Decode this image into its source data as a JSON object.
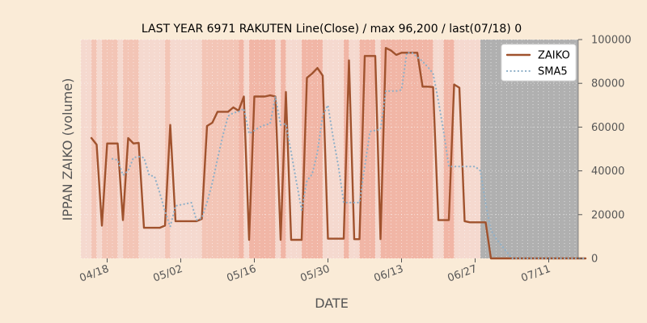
{
  "chart_data": {
    "type": "line",
    "title": "LAST YEAR 6971 RAKUTEN Line(Close) / max 96,200 / last(07/18) 0",
    "xlabel": "DATE",
    "ylabel": "IPPAN ZAIKO (volume)",
    "x_tick_labels": [
      "04/18",
      "05/02",
      "05/16",
      "05/30",
      "06/13",
      "06/27",
      "07/11"
    ],
    "y_tick_labels": [
      "0",
      "20000",
      "40000",
      "60000",
      "80000",
      "100000"
    ],
    "ylim": [
      0,
      100000
    ],
    "y_axis_side": "right",
    "legend_position": "top-right",
    "grid": true,
    "series": [
      {
        "name": "ZAIKO",
        "color": "#a0522d",
        "style": "solid",
        "points": [
          [
            "04/15",
            55000
          ],
          [
            "04/16",
            52000
          ],
          [
            "04/17",
            15000
          ],
          [
            "04/18",
            52500
          ],
          [
            "04/19",
            52500
          ],
          [
            "04/20",
            52500
          ],
          [
            "04/21",
            17500
          ],
          [
            "04/22",
            55000
          ],
          [
            "04/23",
            52500
          ],
          [
            "04/24",
            52800
          ],
          [
            "04/25",
            14000
          ],
          [
            "04/26",
            14000
          ],
          [
            "04/27",
            14000
          ],
          [
            "04/28",
            14000
          ],
          [
            "04/29",
            15000
          ],
          [
            "04/30",
            61000
          ],
          [
            "05/01",
            17000
          ],
          [
            "05/02",
            17000
          ],
          [
            "05/03",
            17000
          ],
          [
            "05/04",
            17000
          ],
          [
            "05/05",
            17000
          ],
          [
            "05/06",
            18000
          ],
          [
            "05/07",
            60500
          ],
          [
            "05/08",
            62000
          ],
          [
            "05/09",
            67000
          ],
          [
            "05/10",
            67000
          ],
          [
            "05/11",
            67000
          ],
          [
            "05/12",
            69000
          ],
          [
            "05/13",
            67500
          ],
          [
            "05/14",
            74000
          ],
          [
            "05/15",
            8500
          ],
          [
            "05/16",
            74000
          ],
          [
            "05/17",
            74000
          ],
          [
            "05/18",
            74000
          ],
          [
            "05/19",
            74500
          ],
          [
            "05/20",
            74000
          ],
          [
            "05/21",
            8500
          ],
          [
            "05/22",
            76000
          ],
          [
            "05/23",
            8500
          ],
          [
            "05/24",
            8500
          ],
          [
            "05/25",
            8500
          ],
          [
            "05/26",
            82500
          ],
          [
            "05/27",
            84500
          ],
          [
            "05/28",
            87000
          ],
          [
            "05/29",
            83500
          ],
          [
            "05/30",
            9000
          ],
          [
            "05/31",
            9000
          ],
          [
            "06/01",
            9000
          ],
          [
            "06/02",
            9000
          ],
          [
            "06/03",
            90500
          ],
          [
            "06/04",
            8800
          ],
          [
            "06/05",
            8800
          ],
          [
            "06/06",
            92500
          ],
          [
            "06/07",
            92500
          ],
          [
            "06/08",
            92500
          ],
          [
            "06/09",
            8800
          ],
          [
            "06/10",
            96200
          ],
          [
            "06/11",
            95000
          ],
          [
            "06/12",
            93000
          ],
          [
            "06/13",
            94000
          ],
          [
            "06/14",
            94000
          ],
          [
            "06/15",
            94000
          ],
          [
            "06/16",
            94000
          ],
          [
            "06/17",
            78500
          ],
          [
            "06/18",
            78500
          ],
          [
            "06/19",
            78300
          ],
          [
            "06/20",
            17500
          ],
          [
            "06/21",
            17500
          ],
          [
            "06/22",
            17500
          ],
          [
            "06/23",
            79500
          ],
          [
            "06/24",
            78000
          ],
          [
            "06/25",
            17000
          ],
          [
            "06/26",
            16500
          ],
          [
            "06/27",
            16500
          ],
          [
            "06/28",
            16500
          ],
          [
            "06/29",
            16500
          ],
          [
            "06/30",
            0
          ],
          [
            "07/01",
            0
          ],
          [
            "07/02",
            0
          ],
          [
            "07/03",
            0
          ],
          [
            "07/04",
            0
          ],
          [
            "07/05",
            0
          ],
          [
            "07/06",
            0
          ],
          [
            "07/07",
            0
          ],
          [
            "07/08",
            0
          ],
          [
            "07/09",
            0
          ],
          [
            "07/10",
            0
          ],
          [
            "07/11",
            0
          ],
          [
            "07/12",
            0
          ],
          [
            "07/13",
            0
          ],
          [
            "07/14",
            0
          ],
          [
            "07/15",
            0
          ],
          [
            "07/16",
            0
          ],
          [
            "07/17",
            0
          ],
          [
            "07/18",
            0
          ]
        ]
      },
      {
        "name": "SMA5",
        "color": "#8fb0c8",
        "style": "dotted",
        "points": [
          [
            "04/19",
            45500
          ],
          [
            "04/20",
            45000
          ],
          [
            "04/21",
            38000
          ],
          [
            "04/22",
            40000
          ],
          [
            "04/23",
            46000
          ],
          [
            "04/24",
            46500
          ],
          [
            "04/25",
            46000
          ],
          [
            "04/26",
            38000
          ],
          [
            "04/27",
            37500
          ],
          [
            "04/28",
            30000
          ],
          [
            "04/29",
            21500
          ],
          [
            "04/30",
            14500
          ],
          [
            "05/01",
            24000
          ],
          [
            "05/02",
            24500
          ],
          [
            "05/03",
            25000
          ],
          [
            "05/04",
            25500
          ],
          [
            "05/05",
            17500
          ],
          [
            "05/06",
            18500
          ],
          [
            "05/07",
            25500
          ],
          [
            "05/08",
            34500
          ],
          [
            "05/09",
            45500
          ],
          [
            "05/10",
            56000
          ],
          [
            "05/11",
            65000
          ],
          [
            "05/12",
            66500
          ],
          [
            "05/13",
            67000
          ],
          [
            "05/14",
            68500
          ],
          [
            "05/15",
            57000
          ],
          [
            "05/16",
            58500
          ],
          [
            "05/17",
            60000
          ],
          [
            "05/18",
            61000
          ],
          [
            "05/19",
            61500
          ],
          [
            "05/20",
            74000
          ],
          [
            "05/21",
            61000
          ],
          [
            "05/22",
            61500
          ],
          [
            "05/23",
            48500
          ],
          [
            "05/24",
            35000
          ],
          [
            "05/25",
            22000
          ],
          [
            "05/26",
            35500
          ],
          [
            "05/27",
            38500
          ],
          [
            "05/28",
            48500
          ],
          [
            "05/29",
            65500
          ],
          [
            "05/30",
            70000
          ],
          [
            "05/31",
            55000
          ],
          [
            "06/01",
            42000
          ],
          [
            "06/02",
            25500
          ],
          [
            "06/03",
            25500
          ],
          [
            "06/04",
            25500
          ],
          [
            "06/05",
            25500
          ],
          [
            "06/06",
            42000
          ],
          [
            "06/07",
            58000
          ],
          [
            "06/08",
            58500
          ],
          [
            "06/09",
            59000
          ],
          [
            "06/10",
            76500
          ],
          [
            "06/11",
            76500
          ],
          [
            "06/12",
            76500
          ],
          [
            "06/13",
            77000
          ],
          [
            "06/14",
            94000
          ],
          [
            "06/15",
            94000
          ],
          [
            "06/16",
            92000
          ],
          [
            "06/17",
            90000
          ],
          [
            "06/18",
            87500
          ],
          [
            "06/19",
            84500
          ],
          [
            "06/20",
            72000
          ],
          [
            "06/21",
            58000
          ],
          [
            "06/22",
            42000
          ],
          [
            "06/23",
            42000
          ],
          [
            "06/24",
            42000
          ],
          [
            "06/25",
            42000
          ],
          [
            "06/26",
            42000
          ],
          [
            "06/27",
            42000
          ],
          [
            "06/28",
            40000
          ],
          [
            "06/29",
            25000
          ],
          [
            "06/30",
            13000
          ],
          [
            "07/01",
            9000
          ],
          [
            "07/02",
            6000
          ],
          [
            "07/03",
            3000
          ],
          [
            "07/04",
            0
          ],
          [
            "07/05",
            0
          ],
          [
            "07/06",
            0
          ],
          [
            "07/07",
            0
          ],
          [
            "07/08",
            0
          ],
          [
            "07/09",
            0
          ],
          [
            "07/10",
            0
          ],
          [
            "07/11",
            0
          ],
          [
            "07/12",
            0
          ],
          [
            "07/13",
            0
          ],
          [
            "07/14",
            0
          ],
          [
            "07/15",
            0
          ],
          [
            "07/16",
            0
          ],
          [
            "07/17",
            0
          ],
          [
            "07/18",
            0
          ]
        ]
      }
    ],
    "background_bands": [
      {
        "from": "04/13",
        "to": "04/15",
        "tone": "light"
      },
      {
        "from": "04/15",
        "to": "04/16",
        "tone": "medium"
      },
      {
        "from": "04/16",
        "to": "04/17",
        "tone": "light"
      },
      {
        "from": "04/17",
        "to": "04/20",
        "tone": "medium"
      },
      {
        "from": "04/20",
        "to": "04/21",
        "tone": "light"
      },
      {
        "from": "04/21",
        "to": "04/24",
        "tone": "medium"
      },
      {
        "from": "04/24",
        "to": "04/29",
        "tone": "light"
      },
      {
        "from": "04/29",
        "to": "04/30",
        "tone": "medium"
      },
      {
        "from": "04/30",
        "to": "05/06",
        "tone": "light"
      },
      {
        "from": "05/06",
        "to": "05/13",
        "tone": "medium"
      },
      {
        "from": "05/13",
        "to": "05/14",
        "tone": "strong"
      },
      {
        "from": "05/14",
        "to": "05/15",
        "tone": "light"
      },
      {
        "from": "05/15",
        "to": "05/20",
        "tone": "strong"
      },
      {
        "from": "05/20",
        "to": "05/21",
        "tone": "light"
      },
      {
        "from": "05/21",
        "to": "05/22",
        "tone": "strong"
      },
      {
        "from": "05/22",
        "to": "05/25",
        "tone": "light"
      },
      {
        "from": "05/25",
        "to": "05/29",
        "tone": "strong"
      },
      {
        "from": "05/29",
        "to": "06/02",
        "tone": "light"
      },
      {
        "from": "06/02",
        "to": "06/03",
        "tone": "strong"
      },
      {
        "from": "06/03",
        "to": "06/05",
        "tone": "light"
      },
      {
        "from": "06/05",
        "to": "06/08",
        "tone": "strong"
      },
      {
        "from": "06/08",
        "to": "06/09",
        "tone": "light"
      },
      {
        "from": "06/09",
        "to": "06/19",
        "tone": "strong"
      },
      {
        "from": "06/19",
        "to": "06/21",
        "tone": "light"
      },
      {
        "from": "06/21",
        "to": "06/23",
        "tone": "strong"
      },
      {
        "from": "06/23",
        "to": "06/28",
        "tone": "light"
      },
      {
        "from": "06/28",
        "to": "07/18",
        "tone": "gray"
      }
    ],
    "colors": {
      "background": "#faebd7",
      "band_light": "#f5d9cf",
      "band_medium": "#f3c5b6",
      "band_strong": "#f1b6a6",
      "band_gray": "#b0b0b0",
      "grid": "#ffffff",
      "zaiko_line": "#a0522d",
      "sma5_line": "#8fb0c8"
    }
  }
}
